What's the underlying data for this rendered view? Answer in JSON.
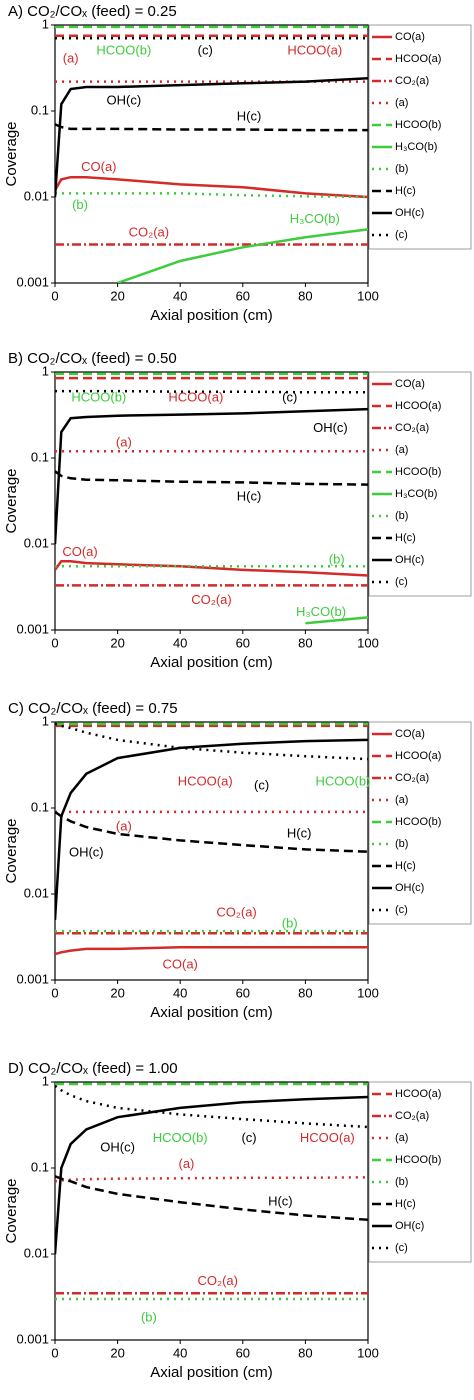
{
  "chart_data": [
    {
      "type": "line",
      "title": "A) CO₂/COₓ (feed) = 0.25",
      "xlabel": "Axial position (cm)",
      "ylabel": "Coverage",
      "log_y": true,
      "xlim": [
        0,
        100
      ],
      "ylim": [
        0.001,
        1
      ],
      "xticks": [
        0,
        20,
        40,
        60,
        80,
        100
      ],
      "yticks": [
        0.001,
        0.01,
        0.1,
        1
      ],
      "x": [
        0,
        2,
        5,
        10,
        20,
        40,
        60,
        80,
        100
      ],
      "series": [
        {
          "name": "CO(a)",
          "color": "#d42a2a",
          "dash": "solid",
          "values": [
            0.012,
            0.016,
            0.017,
            0.017,
            0.016,
            0.014,
            0.013,
            0.011,
            0.01
          ]
        },
        {
          "name": "HCOO(a)",
          "color": "#d42a2a",
          "dash": "dash",
          "values": [
            0.75,
            0.75,
            0.75,
            0.75,
            0.75,
            0.75,
            0.75,
            0.75,
            0.75
          ]
        },
        {
          "name": "CO₂(a)",
          "color": "#d42a2a",
          "dash": "dashdot",
          "values": [
            0.0028,
            0.0028,
            0.0028,
            0.0028,
            0.0028,
            0.0028,
            0.0028,
            0.0028,
            0.0028
          ]
        },
        {
          "name": "(a)",
          "color": "#d42a2a",
          "dash": "dot",
          "values": [
            0.22,
            0.22,
            0.22,
            0.22,
            0.22,
            0.22,
            0.22,
            0.22,
            0.22
          ]
        },
        {
          "name": "HCOO(b)",
          "color": "#3ccc3c",
          "dash": "dash",
          "values": [
            0.95,
            0.95,
            0.95,
            0.95,
            0.95,
            0.95,
            0.95,
            0.95,
            0.95
          ]
        },
        {
          "name": "H₃CO(b)",
          "color": "#3ccc3c",
          "dash": "solid",
          "values": [
            null,
            null,
            null,
            null,
            0.001,
            0.0018,
            0.0026,
            0.0034,
            0.0042
          ]
        },
        {
          "name": "(b)",
          "color": "#3ccc3c",
          "dash": "dot",
          "values": [
            0.011,
            0.011,
            0.011,
            0.011,
            0.011,
            0.011,
            0.0105,
            0.0102,
            0.01
          ]
        },
        {
          "name": "H(c)",
          "color": "#000000",
          "dash": "dash",
          "values": [
            0.07,
            0.065,
            0.062,
            0.062,
            0.062,
            0.061,
            0.061,
            0.06,
            0.06
          ]
        },
        {
          "name": "OH(c)",
          "color": "#000000",
          "dash": "solid",
          "values": [
            0.01,
            0.12,
            0.18,
            0.19,
            0.19,
            0.2,
            0.21,
            0.22,
            0.24
          ]
        },
        {
          "name": "(c)",
          "color": "#000000",
          "dash": "dot",
          "values": [
            0.7,
            0.7,
            0.7,
            0.7,
            0.7,
            0.7,
            0.7,
            0.7,
            0.7
          ]
        }
      ],
      "annotations": [
        {
          "text": "HCOO(b)",
          "color": "#3ccc3c"
        },
        {
          "text": "(c)",
          "color": "#000000"
        },
        {
          "text": "HCOO(a)",
          "color": "#d42a2a"
        },
        {
          "text": "(a)",
          "color": "#d42a2a"
        },
        {
          "text": "OH(c)",
          "color": "#000000"
        },
        {
          "text": "H(c)",
          "color": "#000000"
        },
        {
          "text": "CO(a)",
          "color": "#d42a2a"
        },
        {
          "text": "(b)",
          "color": "#3ccc3c"
        },
        {
          "text": "CO₂(a)",
          "color": "#d42a2a"
        },
        {
          "text": "H₃CO(b)",
          "color": "#3ccc3c"
        }
      ]
    },
    {
      "type": "line",
      "title": "B) CO₂/COₓ (feed) = 0.50",
      "xlabel": "Axial position (cm)",
      "ylabel": "Coverage",
      "log_y": true,
      "xlim": [
        0,
        100
      ],
      "ylim": [
        0.001,
        1
      ],
      "xticks": [
        0,
        20,
        40,
        60,
        80,
        100
      ],
      "yticks": [
        0.001,
        0.01,
        0.1,
        1
      ],
      "x": [
        0,
        2,
        5,
        10,
        20,
        40,
        60,
        80,
        100
      ],
      "series": [
        {
          "name": "CO(a)",
          "color": "#d42a2a",
          "dash": "solid",
          "values": [
            0.005,
            0.0063,
            0.0063,
            0.006,
            0.0058,
            0.0055,
            0.005,
            0.0047,
            0.0043
          ]
        },
        {
          "name": "HCOO(a)",
          "color": "#d42a2a",
          "dash": "dash",
          "values": [
            0.85,
            0.85,
            0.85,
            0.85,
            0.85,
            0.85,
            0.85,
            0.85,
            0.85
          ]
        },
        {
          "name": "CO₂(a)",
          "color": "#d42a2a",
          "dash": "dashdot",
          "values": [
            0.0033,
            0.0033,
            0.0033,
            0.0033,
            0.0033,
            0.0033,
            0.0033,
            0.0033,
            0.0033
          ]
        },
        {
          "name": "(a)",
          "color": "#d42a2a",
          "dash": "dot",
          "values": [
            0.12,
            0.12,
            0.12,
            0.12,
            0.12,
            0.12,
            0.12,
            0.12,
            0.12
          ]
        },
        {
          "name": "HCOO(b)",
          "color": "#3ccc3c",
          "dash": "dash",
          "values": [
            0.95,
            0.95,
            0.95,
            0.95,
            0.95,
            0.95,
            0.95,
            0.95,
            0.95
          ]
        },
        {
          "name": "H₃CO(b)",
          "color": "#3ccc3c",
          "dash": "solid",
          "values": [
            null,
            null,
            null,
            null,
            null,
            null,
            null,
            0.0012,
            0.0014
          ]
        },
        {
          "name": "(b)",
          "color": "#3ccc3c",
          "dash": "dot",
          "values": [
            0.0055,
            0.0055,
            0.0055,
            0.0055,
            0.0055,
            0.0055,
            0.0055,
            0.0055,
            0.0055
          ]
        },
        {
          "name": "H(c)",
          "color": "#000000",
          "dash": "dash",
          "values": [
            0.07,
            0.062,
            0.058,
            0.056,
            0.055,
            0.053,
            0.052,
            0.05,
            0.049
          ]
        },
        {
          "name": "OH(c)",
          "color": "#000000",
          "dash": "solid",
          "values": [
            0.01,
            0.2,
            0.29,
            0.3,
            0.31,
            0.32,
            0.33,
            0.35,
            0.37
          ]
        },
        {
          "name": "(c)",
          "color": "#000000",
          "dash": "dot",
          "values": [
            0.6,
            0.6,
            0.6,
            0.6,
            0.6,
            0.59,
            0.59,
            0.58,
            0.58
          ]
        }
      ],
      "annotations": [
        {
          "text": "HCOO(b)",
          "color": "#3ccc3c"
        },
        {
          "text": "HCOO(a)",
          "color": "#d42a2a"
        },
        {
          "text": "(c)",
          "color": "#000000"
        },
        {
          "text": "OH(c)",
          "color": "#000000"
        },
        {
          "text": "(a)",
          "color": "#d42a2a"
        },
        {
          "text": "H(c)",
          "color": "#000000"
        },
        {
          "text": "CO(a)",
          "color": "#d42a2a"
        },
        {
          "text": "(b)",
          "color": "#3ccc3c"
        },
        {
          "text": "CO₂(a)",
          "color": "#d42a2a"
        },
        {
          "text": "H₃CO(b)",
          "color": "#3ccc3c"
        }
      ]
    },
    {
      "type": "line",
      "title": "C) CO₂/COₓ (feed) = 0.75",
      "xlabel": "Axial position (cm)",
      "ylabel": "Coverage",
      "log_y": true,
      "xlim": [
        0,
        100
      ],
      "ylim": [
        0.001,
        1
      ],
      "xticks": [
        0,
        20,
        40,
        60,
        80,
        100
      ],
      "yticks": [
        0.001,
        0.01,
        0.1,
        1
      ],
      "x": [
        0,
        2,
        5,
        10,
        20,
        40,
        60,
        80,
        100
      ],
      "series": [
        {
          "name": "CO(a)",
          "color": "#d42a2a",
          "dash": "solid",
          "values": [
            0.002,
            0.0021,
            0.0022,
            0.0023,
            0.0023,
            0.0024,
            0.0024,
            0.0024,
            0.0024
          ]
        },
        {
          "name": "HCOO(a)",
          "color": "#d42a2a",
          "dash": "dash",
          "values": [
            0.9,
            0.9,
            0.9,
            0.9,
            0.9,
            0.9,
            0.9,
            0.9,
            0.9
          ]
        },
        {
          "name": "CO₂(a)",
          "color": "#d42a2a",
          "dash": "dashdot",
          "values": [
            0.0035,
            0.0035,
            0.0035,
            0.0035,
            0.0035,
            0.0035,
            0.0035,
            0.0035,
            0.0035
          ]
        },
        {
          "name": "(a)",
          "color": "#d42a2a",
          "dash": "dot",
          "values": [
            0.09,
            0.09,
            0.09,
            0.09,
            0.09,
            0.09,
            0.09,
            0.09,
            0.09
          ]
        },
        {
          "name": "HCOO(b)",
          "color": "#3ccc3c",
          "dash": "dash",
          "values": [
            0.95,
            0.95,
            0.95,
            0.95,
            0.95,
            0.95,
            0.95,
            0.95,
            0.95
          ]
        },
        {
          "name": "(b)",
          "color": "#3ccc3c",
          "dash": "dot",
          "values": [
            0.0037,
            0.0037,
            0.0037,
            0.0037,
            0.0037,
            0.0037,
            0.0037,
            0.0037,
            0.0037
          ]
        },
        {
          "name": "H(c)",
          "color": "#000000",
          "dash": "dash",
          "values": [
            0.09,
            0.08,
            0.07,
            0.06,
            0.05,
            0.042,
            0.037,
            0.033,
            0.031
          ]
        },
        {
          "name": "OH(c)",
          "color": "#000000",
          "dash": "solid",
          "values": [
            0.005,
            0.08,
            0.15,
            0.25,
            0.38,
            0.5,
            0.56,
            0.6,
            0.62
          ]
        },
        {
          "name": "(c)",
          "color": "#000000",
          "dash": "dot",
          "values": [
            0.95,
            0.9,
            0.85,
            0.75,
            0.62,
            0.5,
            0.44,
            0.4,
            0.37
          ]
        }
      ],
      "annotations": [
        {
          "text": "HCOO(a)",
          "color": "#d42a2a"
        },
        {
          "text": "(c)",
          "color": "#000000"
        },
        {
          "text": "HCOO(b)",
          "color": "#3ccc3c"
        },
        {
          "text": "(a)",
          "color": "#d42a2a"
        },
        {
          "text": "H(c)",
          "color": "#000000"
        },
        {
          "text": "OH(c)",
          "color": "#000000"
        },
        {
          "text": "CO₂(a)",
          "color": "#d42a2a"
        },
        {
          "text": "(b)",
          "color": "#3ccc3c"
        },
        {
          "text": "CO(a)",
          "color": "#d42a2a"
        }
      ]
    },
    {
      "type": "line",
      "title": "D) CO₂/COₓ (feed) = 1.00",
      "xlabel": "Axial position (cm)",
      "ylabel": "Coverage",
      "log_y": true,
      "xlim": [
        0,
        100
      ],
      "ylim": [
        0.001,
        1
      ],
      "xticks": [
        0,
        20,
        40,
        60,
        80,
        100
      ],
      "yticks": [
        0.001,
        0.01,
        0.1,
        1
      ],
      "x": [
        0,
        2,
        5,
        10,
        20,
        40,
        60,
        80,
        100
      ],
      "series": [
        {
          "name": "HCOO(a)",
          "color": "#d42a2a",
          "dash": "dash",
          "values": [
            0.95,
            0.95,
            0.95,
            0.95,
            0.95,
            0.95,
            0.95,
            0.95,
            0.95
          ]
        },
        {
          "name": "CO₂(a)",
          "color": "#d42a2a",
          "dash": "dashdot",
          "values": [
            0.0035,
            0.0035,
            0.0035,
            0.0035,
            0.0035,
            0.0035,
            0.0035,
            0.0035,
            0.0035
          ]
        },
        {
          "name": "(a)",
          "color": "#d42a2a",
          "dash": "dot",
          "values": [
            0.07,
            0.072,
            0.073,
            0.074,
            0.075,
            0.076,
            0.077,
            0.077,
            0.078
          ]
        },
        {
          "name": "HCOO(b)",
          "color": "#3ccc3c",
          "dash": "dash",
          "values": [
            0.95,
            0.95,
            0.95,
            0.95,
            0.95,
            0.95,
            0.95,
            0.95,
            0.95
          ]
        },
        {
          "name": "(b)",
          "color": "#3ccc3c",
          "dash": "dot",
          "values": [
            0.003,
            0.003,
            0.003,
            0.003,
            0.003,
            0.003,
            0.003,
            0.003,
            0.003
          ]
        },
        {
          "name": "H(c)",
          "color": "#000000",
          "dash": "dash",
          "values": [
            0.08,
            0.075,
            0.07,
            0.06,
            0.05,
            0.04,
            0.033,
            0.028,
            0.025
          ]
        },
        {
          "name": "OH(c)",
          "color": "#000000",
          "dash": "solid",
          "values": [
            0.01,
            0.1,
            0.19,
            0.28,
            0.39,
            0.5,
            0.58,
            0.63,
            0.67
          ]
        },
        {
          "name": "(c)",
          "color": "#000000",
          "dash": "dot",
          "values": [
            0.9,
            0.8,
            0.7,
            0.6,
            0.5,
            0.42,
            0.37,
            0.33,
            0.3
          ]
        }
      ],
      "annotations": [
        {
          "text": "HCOO(b)",
          "color": "#3ccc3c"
        },
        {
          "text": "(c)",
          "color": "#000000"
        },
        {
          "text": "HCOO(a)",
          "color": "#d42a2a"
        },
        {
          "text": "OH(c)",
          "color": "#000000"
        },
        {
          "text": "(a)",
          "color": "#d42a2a"
        },
        {
          "text": "H(c)",
          "color": "#000000"
        },
        {
          "text": "CO₂(a)",
          "color": "#d42a2a"
        },
        {
          "text": "(b)",
          "color": "#3ccc3c"
        }
      ]
    }
  ]
}
